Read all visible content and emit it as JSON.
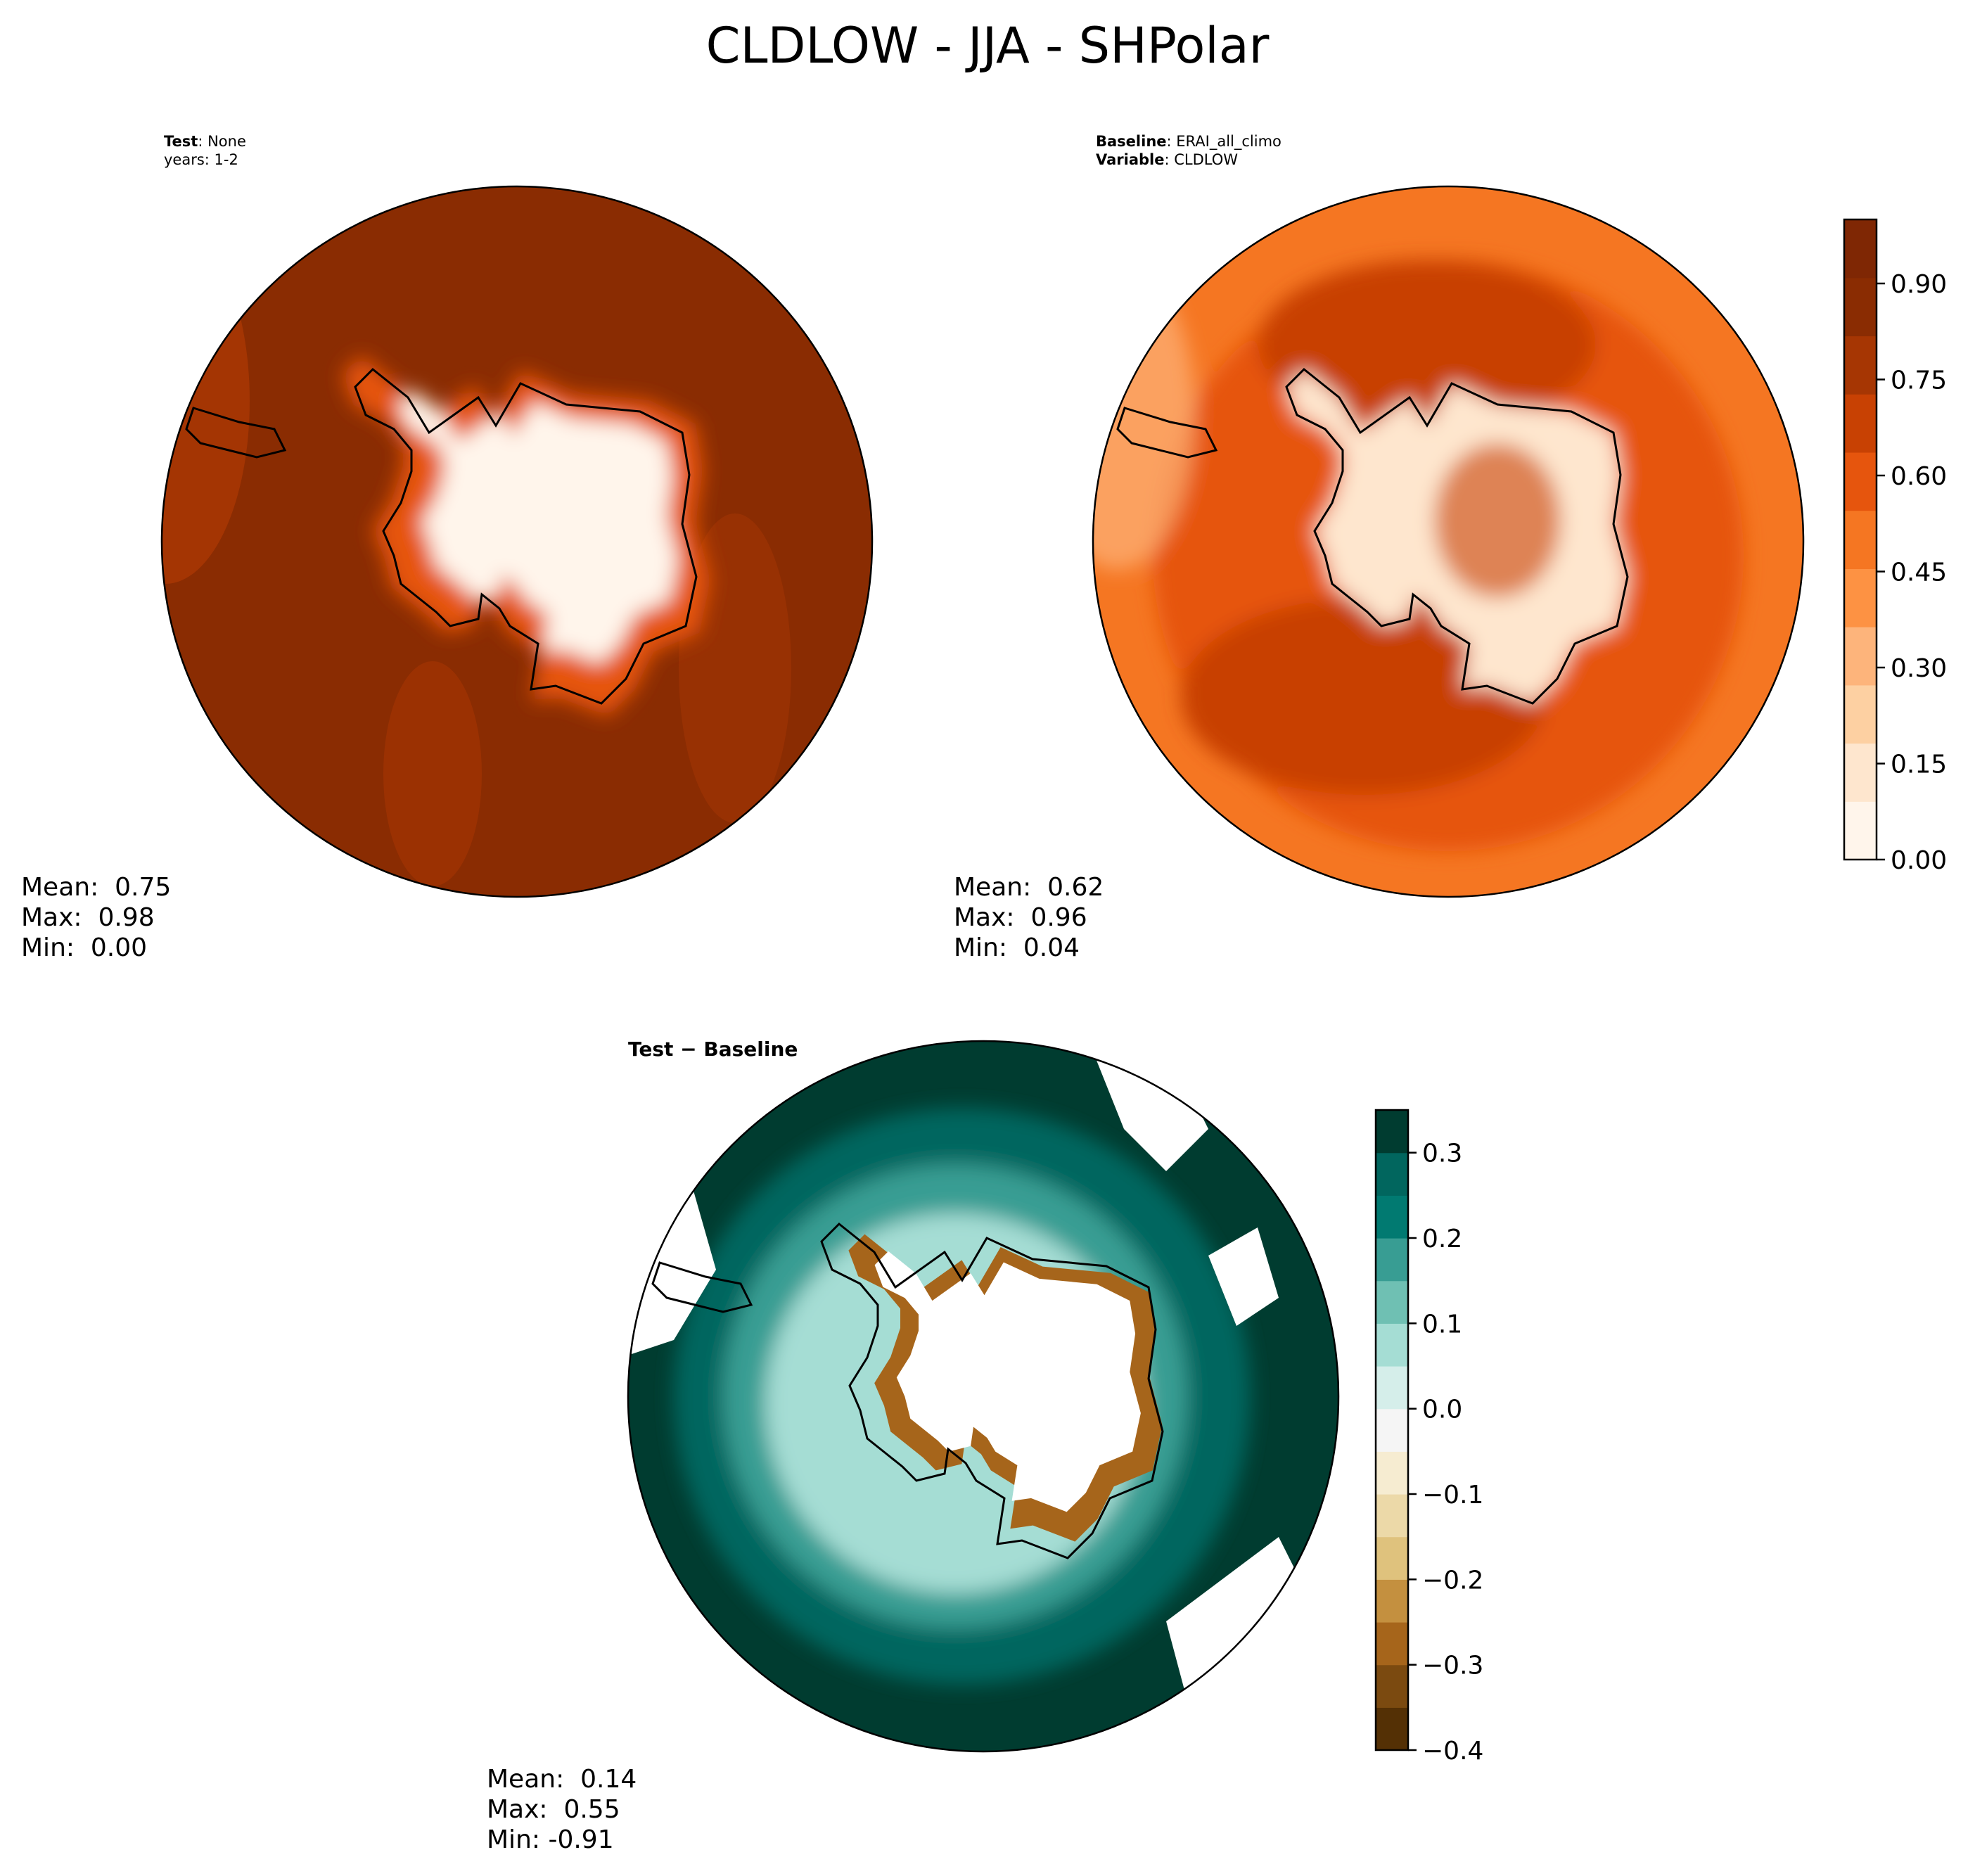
{
  "figure": {
    "title": "CLDLOW - JJA - SHPolar",
    "panels": [
      {
        "id": "test",
        "header_lines": [
          {
            "bold": "Test",
            "text": "None"
          },
          {
            "bold": "",
            "text": "years: 1-2"
          }
        ],
        "stats": {
          "mean": "Mean:  0.75",
          "max": "Max:  0.98",
          "min": "Min:  0.00"
        }
      },
      {
        "id": "baseline",
        "header_lines": [
          {
            "bold": "Baseline",
            "text": "ERAI_all_climo"
          },
          {
            "bold": "Variable",
            "text": "CLDLOW"
          }
        ],
        "stats": {
          "mean": "Mean:  0.62",
          "max": "Max:  0.96",
          "min": "Min:  0.04"
        }
      },
      {
        "id": "difference",
        "header_lines": [
          {
            "bold": "Test − Baseline",
            "text": ""
          }
        ],
        "stats": {
          "mean": "Mean:  0.14",
          "max": "Max:  0.55",
          "min": "Min: -0.91"
        }
      }
    ]
  },
  "header_separator": ": ",
  "colorbars": {
    "main": {
      "ticks": [
        "0.00",
        "0.15",
        "0.30",
        "0.45",
        "0.60",
        "0.75",
        "0.90"
      ],
      "colors": [
        "#fff5eb",
        "#fee6ce",
        "#fdd0a2",
        "#fdb47b",
        "#fd9243",
        "#f57622",
        "#e6550d",
        "#c84103",
        "#a63603",
        "#8a2c02",
        "#7f2704"
      ]
    },
    "diff": {
      "ticks": [
        "−0.4",
        "−0.3",
        "−0.2",
        "−0.1",
        "0.0",
        "0.1",
        "0.2",
        "0.3"
      ],
      "colors": [
        "#543005",
        "#7b4a10",
        "#a6651b",
        "#c4903f",
        "#dfc27d",
        "#ecd9a8",
        "#f6ecd1",
        "#f5f5f5",
        "#d5eeea",
        "#a5ddd4",
        "#6fc0b3",
        "#389d93",
        "#017a71",
        "#01665e",
        "#003c30"
      ]
    }
  },
  "map_colors": {
    "test_ocean": "#8a2c02",
    "test_ocean_light": "#a63603",
    "test_ice": "#fff5eb",
    "base_ocean": "#f57622",
    "base_mid": "#e6550d",
    "base_dark": "#c84103",
    "base_ice": "#fee6ce",
    "diff_outer": "#003c30",
    "diff_mid": "#01665e",
    "diff_inner": "#389d93",
    "diff_light": "#a5ddd4",
    "diff_white": "#ffffff",
    "diff_brown": "#a6651b"
  }
}
